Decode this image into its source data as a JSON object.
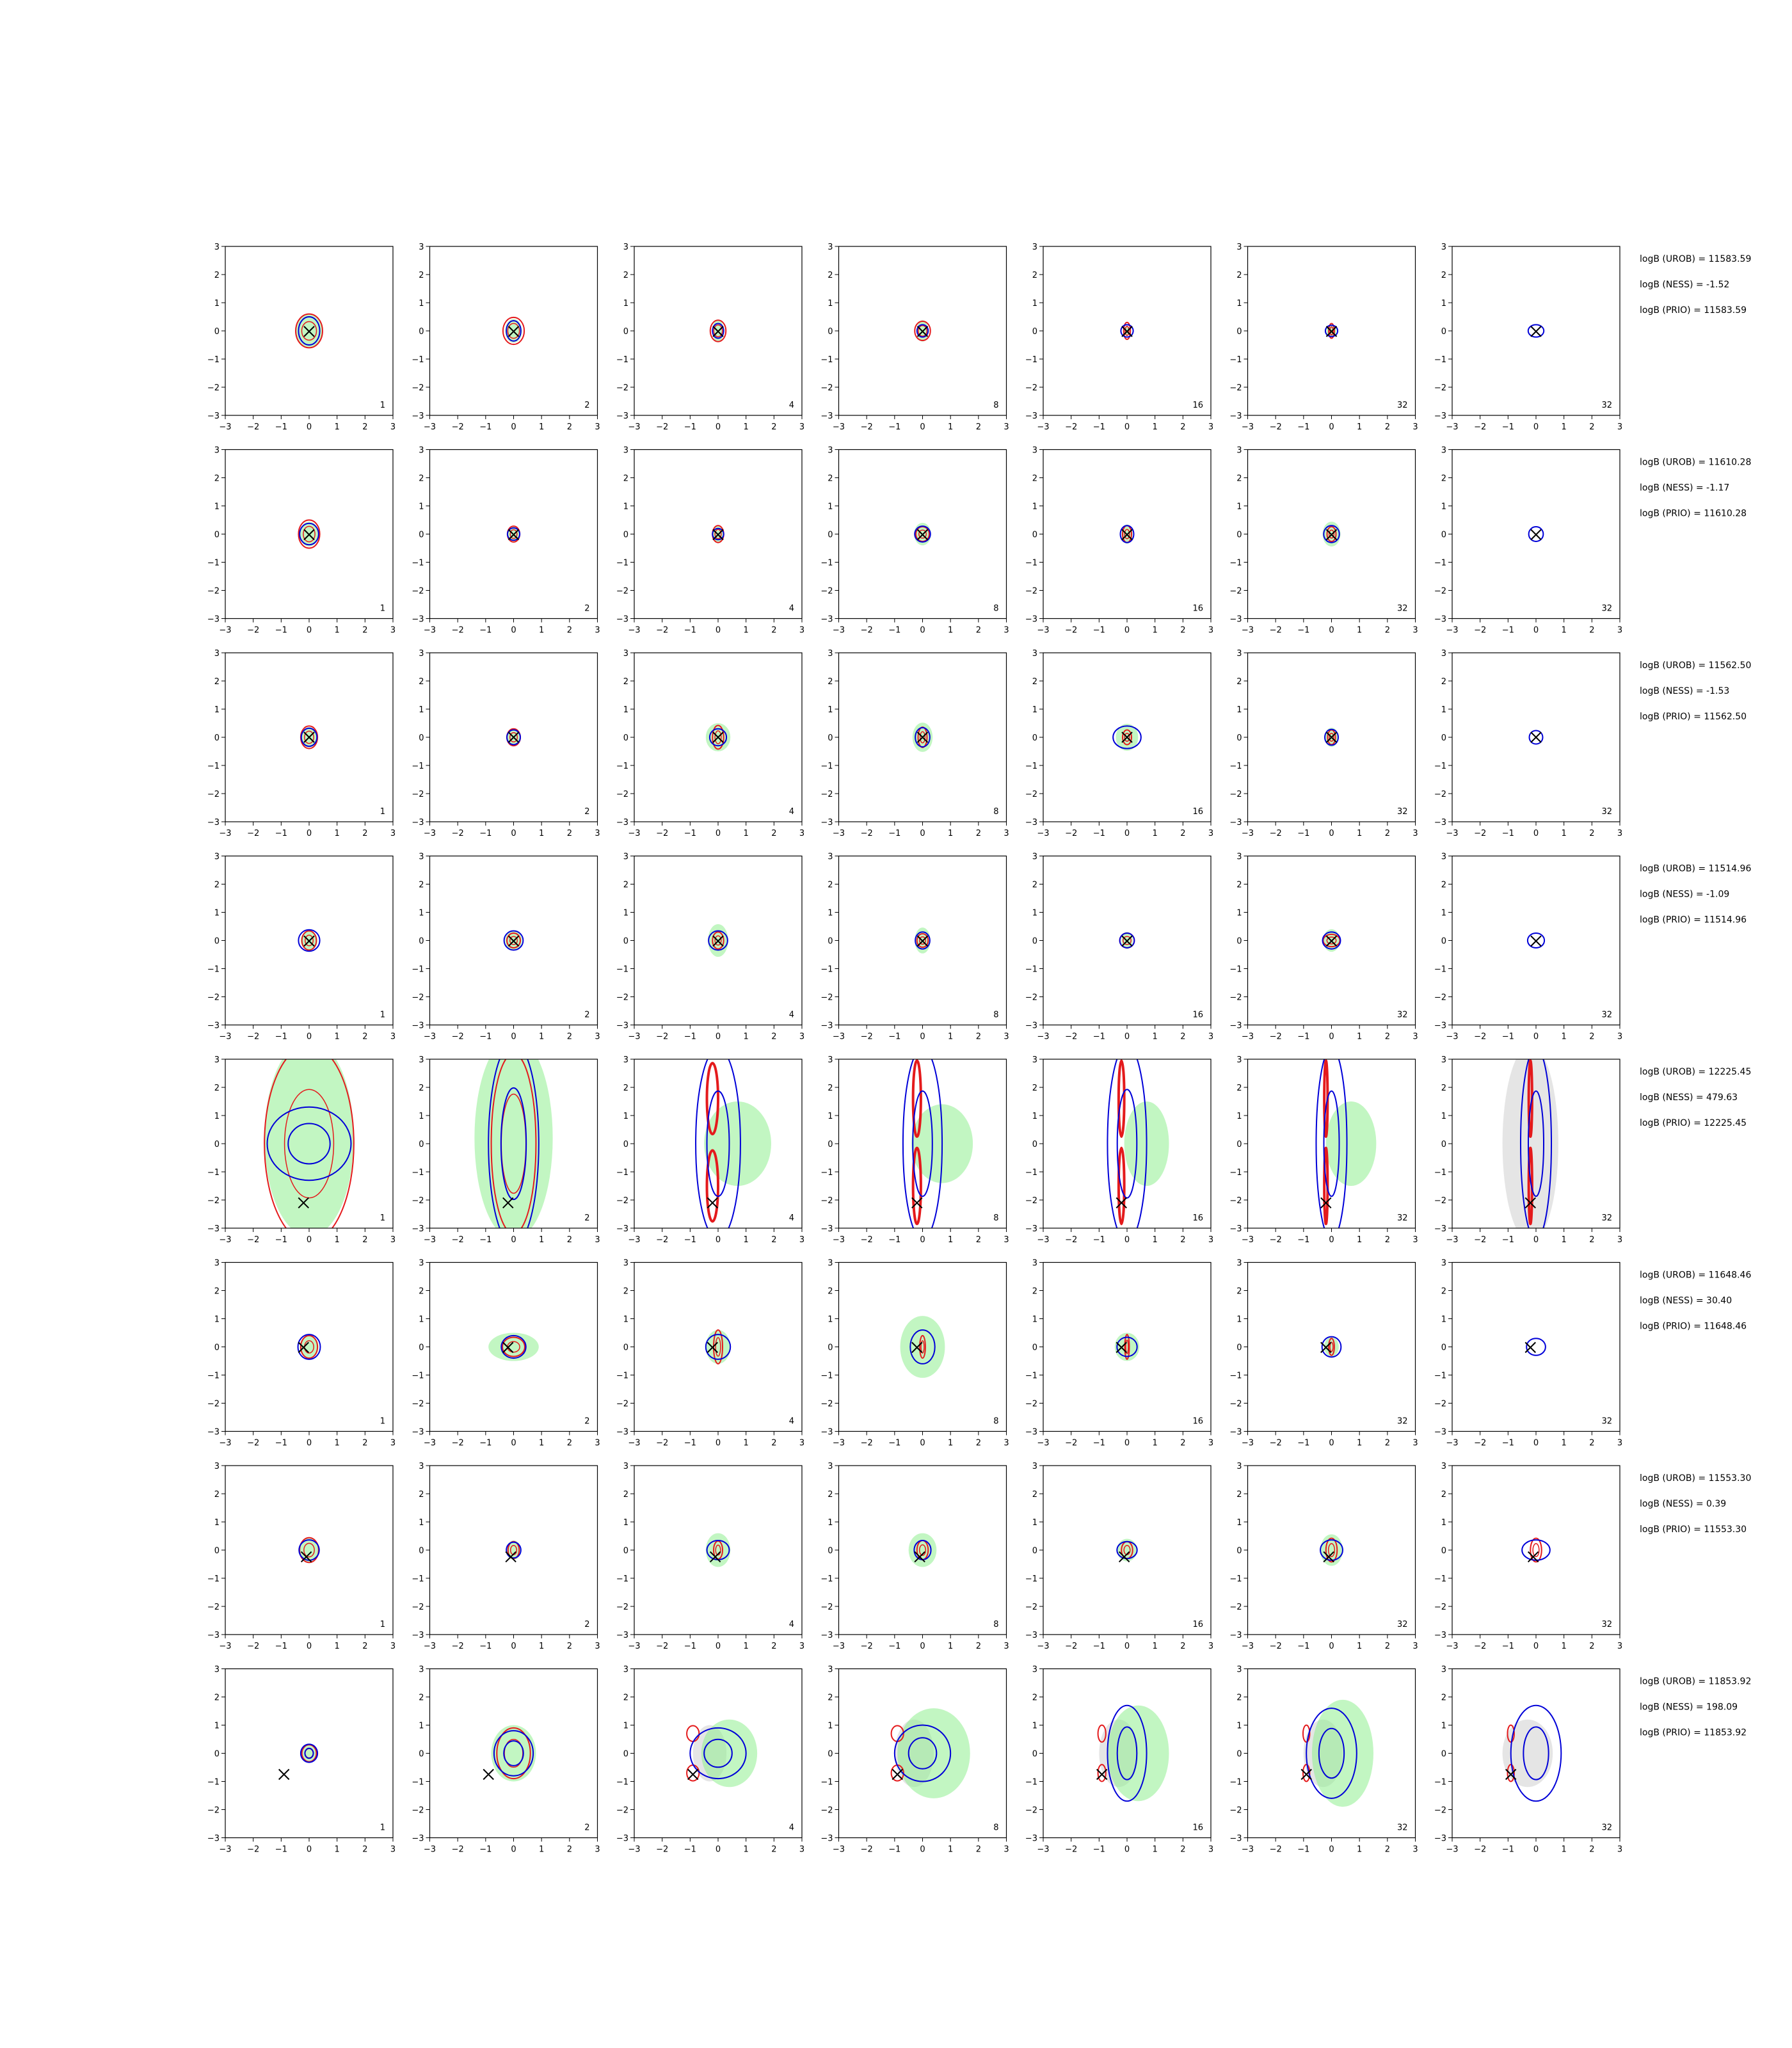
{
  "chart_data": {
    "type": "contour-grid",
    "axes": {
      "xlim": [
        -3,
        3
      ],
      "ylim": [
        -3,
        3
      ],
      "xticks": [
        -3,
        -2,
        -1,
        0,
        1,
        2,
        3
      ],
      "yticks": [
        -3,
        -2,
        -1,
        0,
        1,
        2,
        3
      ],
      "grid": false
    },
    "colors": {
      "red_contour": "#e41a1c",
      "blue_contour": "#0000d8",
      "green_fill": "#90ee90",
      "grey_fill": "#d3d3d3",
      "marker": "#000000"
    },
    "tick_labels": [
      "−3",
      "−2",
      "−1",
      "0",
      "1",
      "2",
      "3"
    ],
    "panel_labels": [
      "1",
      "2",
      "4",
      "8",
      "16",
      "32",
      "32"
    ],
    "rows": [
      {
        "true": [
          0.0,
          -0.02
        ],
        "ann": [
          "logB (UROB) = 11583.59",
          "logB (NESS) = -1.52",
          "logB (PRIO) = 11583.59"
        ],
        "red": [
          [
            0.48,
            0.6
          ],
          [
            0.38,
            0.48
          ],
          [
            0.28,
            0.38
          ],
          [
            0.28,
            0.34
          ],
          [
            0.12,
            0.3
          ],
          [
            0.1,
            0.26
          ],
          [
            0,
            0
          ]
        ],
        "blue": [
          [
            0.38,
            0.5
          ],
          [
            0.26,
            0.36
          ],
          [
            0.2,
            0.26
          ],
          [
            0.2,
            0.22
          ],
          [
            0.22,
            0.22
          ],
          [
            0.22,
            0.2
          ],
          [
            0.28,
            0.22
          ]
        ],
        "green": [
          [
            0.48,
            0.6
          ],
          [
            0.3,
            0.42
          ],
          [
            0.2,
            0.4
          ],
          [
            0.2,
            0.38
          ],
          [
            0.12,
            0.16
          ],
          [
            0.18,
            0.24
          ],
          [
            0,
            0
          ]
        ]
      },
      {
        "true": [
          0.0,
          -0.02
        ],
        "ann": [
          "logB (UROB) = 11610.28",
          "logB (NESS) = -1.17",
          "logB (PRIO) = 11610.28"
        ],
        "red": [
          [
            0.38,
            0.5
          ],
          [
            0.22,
            0.28
          ],
          [
            0.2,
            0.3
          ],
          [
            0.24,
            0.26
          ],
          [
            0.16,
            0.3
          ],
          [
            0.16,
            0.26
          ],
          [
            0,
            0
          ]
        ],
        "blue": [
          [
            0.34,
            0.38
          ],
          [
            0.22,
            0.22
          ],
          [
            0.2,
            0.2
          ],
          [
            0.28,
            0.28
          ],
          [
            0.24,
            0.3
          ],
          [
            0.28,
            0.3
          ],
          [
            0.26,
            0.26
          ]
        ],
        "green": [
          [
            0.34,
            0.44
          ],
          [
            0.22,
            0.26
          ],
          [
            0.2,
            0.3
          ],
          [
            0.3,
            0.4
          ],
          [
            0.2,
            0.34
          ],
          [
            0.32,
            0.44
          ],
          [
            0,
            0
          ]
        ]
      },
      {
        "true": [
          0.0,
          0.0
        ],
        "ann": [
          "logB (UROB) = 11562.50",
          "logB (NESS) = -1.53",
          "logB (PRIO) = 11562.50"
        ],
        "red": [
          [
            0.3,
            0.4
          ],
          [
            0.24,
            0.3
          ],
          [
            0.2,
            0.42
          ],
          [
            0.16,
            0.36
          ],
          [
            0.16,
            0.26
          ],
          [
            0.14,
            0.26
          ],
          [
            0,
            0
          ]
        ],
        "blue": [
          [
            0.28,
            0.32
          ],
          [
            0.24,
            0.26
          ],
          [
            0.3,
            0.3
          ],
          [
            0.26,
            0.34
          ],
          [
            0.5,
            0.4
          ],
          [
            0.24,
            0.28
          ],
          [
            0.24,
            0.24
          ]
        ],
        "green": [
          [
            0.3,
            0.36
          ],
          [
            0.22,
            0.28
          ],
          [
            0.44,
            0.5
          ],
          [
            0.36,
            0.52
          ],
          [
            0.4,
            0.48
          ],
          [
            0.24,
            0.34
          ],
          [
            0,
            0
          ]
        ]
      },
      {
        "true": [
          0.0,
          -0.02
        ],
        "ann": [
          "logB (UROB) = 11514.96",
          "logB (NESS) = -1.09",
          "logB (PRIO) = 11514.96"
        ],
        "red": [
          [
            0.26,
            0.34
          ],
          [
            0.24,
            0.26
          ],
          [
            0.2,
            0.3
          ],
          [
            0.2,
            0.24
          ],
          [
            0.26,
            0.26
          ],
          [
            0.3,
            0.22
          ],
          [
            0,
            0
          ]
        ],
        "blue": [
          [
            0.38,
            0.38
          ],
          [
            0.34,
            0.34
          ],
          [
            0.34,
            0.34
          ],
          [
            0.26,
            0.3
          ],
          [
            0.26,
            0.26
          ],
          [
            0.32,
            0.3
          ],
          [
            0.3,
            0.26
          ]
        ],
        "green": [
          [
            0.3,
            0.34
          ],
          [
            0.3,
            0.34
          ],
          [
            0.36,
            0.58
          ],
          [
            0.28,
            0.46
          ],
          [
            0.2,
            0.3
          ],
          [
            0.3,
            0.4
          ],
          [
            0,
            0
          ]
        ]
      },
      {
        "true": [
          -0.2,
          -2.1
        ],
        "ann": [
          "logB (UROB) = 12225.45",
          "logB (NESS) = 479.63",
          "logB (PRIO) = 12225.45"
        ],
        "red": [
          [
            1.6,
            3.5
          ],
          [
            0.8,
            3.2
          ],
          [
            0.2,
            2.8
          ],
          [
            0.14,
            3.0
          ],
          [
            0.1,
            3.0
          ],
          [
            0.06,
            3.0
          ],
          [
            0.06,
            3.0
          ]
        ],
        "blue": [
          [
            1.5,
            1.3
          ],
          [
            0.9,
            3.6
          ],
          [
            0.8,
            3.4
          ],
          [
            0.7,
            3.4
          ],
          [
            0.7,
            3.5
          ],
          [
            0.55,
            3.4
          ],
          [
            0.55,
            3.4
          ]
        ],
        "green": [
          [
            1.6,
            3.5
          ],
          [
            1.4,
            3.6
          ],
          [
            1.2,
            1.5
          ],
          [
            1.1,
            1.4
          ],
          [
            0.8,
            1.5
          ],
          [
            0.9,
            1.5
          ],
          [
            0,
            0
          ]
        ],
        "grey": [
          [
            0,
            0
          ],
          [
            0,
            0
          ],
          [
            0,
            0
          ],
          [
            0,
            0
          ],
          [
            0,
            0
          ],
          [
            0,
            0
          ],
          [
            1.0,
            3.5
          ]
        ]
      },
      {
        "true": [
          -0.2,
          -0.02
        ],
        "ann": [
          "logB (UROB) = 11648.46",
          "logB (NESS) = 30.40",
          "logB (PRIO) = 11648.46"
        ],
        "red": [
          [
            0.3,
            0.4
          ],
          [
            0.4,
            0.34
          ],
          [
            0.16,
            0.6
          ],
          [
            0.1,
            0.4
          ],
          [
            0.08,
            0.44
          ],
          [
            0.1,
            0.3
          ],
          [
            0,
            0
          ]
        ],
        "blue": [
          [
            0.4,
            0.44
          ],
          [
            0.44,
            0.4
          ],
          [
            0.44,
            0.44
          ],
          [
            0.44,
            0.6
          ],
          [
            0.36,
            0.34
          ],
          [
            0.34,
            0.36
          ],
          [
            0.34,
            0.3
          ]
        ],
        "green": [
          [
            0.34,
            0.4
          ],
          [
            0.9,
            0.5
          ],
          [
            0.44,
            0.6
          ],
          [
            0.8,
            1.1
          ],
          [
            0.44,
            0.5
          ],
          [
            0.26,
            0.34
          ],
          [
            0,
            0
          ]
        ]
      },
      {
        "true": [
          -0.1,
          -0.24
        ],
        "ann": [
          "logB (UROB) = 11553.30",
          "logB (NESS) = 0.39",
          "logB (PRIO) = 11553.30"
        ],
        "red": [
          [
            0.34,
            0.44
          ],
          [
            0.2,
            0.3
          ],
          [
            0.16,
            0.32
          ],
          [
            0.2,
            0.34
          ],
          [
            0.2,
            0.3
          ],
          [
            0.2,
            0.42
          ],
          [
            0.2,
            0.42
          ]
        ],
        "blue": [
          [
            0.36,
            0.36
          ],
          [
            0.26,
            0.28
          ],
          [
            0.4,
            0.34
          ],
          [
            0.3,
            0.34
          ],
          [
            0.36,
            0.3
          ],
          [
            0.4,
            0.36
          ],
          [
            0.5,
            0.36
          ]
        ],
        "green": [
          [
            0.34,
            0.46
          ],
          [
            0.26,
            0.34
          ],
          [
            0.44,
            0.6
          ],
          [
            0.5,
            0.6
          ],
          [
            0.36,
            0.4
          ],
          [
            0.4,
            0.56
          ],
          [
            0,
            0
          ]
        ]
      },
      {
        "true": [
          -0.9,
          -0.75
        ],
        "ann": [
          "logB (UROB) = 11853.92",
          "logB (NESS) = 198.09",
          "logB (PRIO) = 11853.92"
        ],
        "red": [
          [
            0.26,
            0.3
          ],
          [
            0.6,
            0.9
          ],
          [
            0.22,
            0.28
          ],
          [
            0.22,
            0.28
          ],
          [
            0.14,
            0.3
          ],
          [
            0.12,
            0.3
          ],
          [
            0.12,
            0.3
          ]
        ],
        "blue": [
          [
            0.3,
            0.32
          ],
          [
            0.7,
            0.8
          ],
          [
            1.0,
            0.9
          ],
          [
            1.0,
            1.0
          ],
          [
            0.7,
            1.7
          ],
          [
            0.9,
            1.6
          ],
          [
            0.9,
            1.7
          ]
        ],
        "green": [
          [
            0.3,
            0.3
          ],
          [
            0.8,
            1.0
          ],
          [
            1.0,
            1.2
          ],
          [
            1.3,
            1.6
          ],
          [
            1.1,
            1.7
          ],
          [
            1.1,
            1.9
          ],
          [
            0,
            0
          ]
        ],
        "grey": [
          [
            0,
            0
          ],
          [
            0,
            0
          ],
          [
            0.6,
            1.0
          ],
          [
            0.7,
            1.2
          ],
          [
            0.7,
            1.2
          ],
          [
            0.7,
            1.2
          ],
          [
            0.9,
            1.2
          ]
        ]
      }
    ]
  }
}
